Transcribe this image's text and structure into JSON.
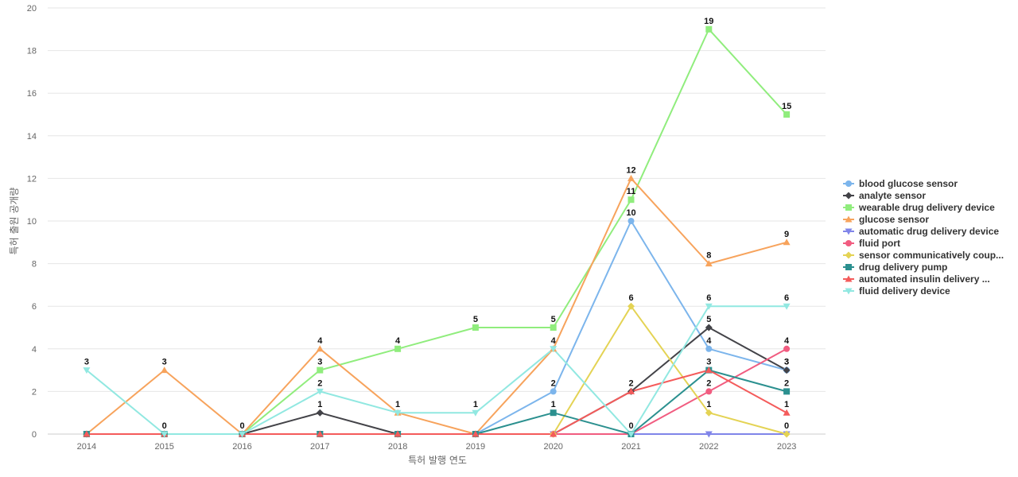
{
  "chart_data": {
    "type": "line",
    "title": "",
    "xlabel": "특허 발행 연도",
    "ylabel": "특허 출원 공개량",
    "ylim": [
      0,
      20
    ],
    "ystep": 2,
    "grid": true,
    "legend": "right",
    "categories": [
      "2014",
      "2015",
      "2016",
      "2017",
      "2018",
      "2019",
      "2020",
      "2021",
      "2022",
      "2023"
    ],
    "series": [
      {
        "name": "blood glucose sensor",
        "color": "#7cb5ec",
        "marker": "circle",
        "values": [
          0,
          0,
          0,
          0,
          0,
          0,
          2,
          10,
          4,
          3
        ]
      },
      {
        "name": "analyte sensor",
        "color": "#434348",
        "marker": "diamond",
        "values": [
          0,
          0,
          0,
          1,
          0,
          0,
          0,
          2,
          5,
          3
        ]
      },
      {
        "name": "wearable drug delivery device",
        "color": "#90ed7d",
        "marker": "square",
        "values": [
          0,
          0,
          0,
          3,
          4,
          5,
          5,
          11,
          19,
          15
        ]
      },
      {
        "name": "glucose sensor",
        "color": "#f7a35c",
        "marker": "triangle",
        "values": [
          0,
          3,
          0,
          4,
          1,
          0,
          4,
          12,
          8,
          9
        ]
      },
      {
        "name": "automatic drug delivery device",
        "color": "#8085e9",
        "marker": "triangle-down",
        "values": [
          0,
          0,
          0,
          0,
          0,
          0,
          0,
          0,
          0,
          0
        ]
      },
      {
        "name": "fluid port",
        "color": "#f15c80",
        "marker": "circle",
        "values": [
          0,
          0,
          0,
          0,
          0,
          0,
          0,
          0,
          2,
          4
        ]
      },
      {
        "name": "sensor communicatively coup...",
        "color": "#e4d354",
        "marker": "diamond",
        "values": [
          0,
          0,
          0,
          0,
          0,
          0,
          0,
          6,
          1,
          0
        ]
      },
      {
        "name": "drug delivery pump",
        "color": "#2b908f",
        "marker": "square",
        "values": [
          0,
          0,
          0,
          0,
          0,
          0,
          1,
          0,
          3,
          2
        ]
      },
      {
        "name": "automated insulin delivery ...",
        "color": "#f45b5b",
        "marker": "triangle",
        "values": [
          0,
          0,
          0,
          0,
          0,
          0,
          0,
          2,
          3,
          1
        ]
      },
      {
        "name": "fluid delivery device",
        "color": "#91e8e1",
        "marker": "triangle-down",
        "values": [
          3,
          0,
          0,
          2,
          1,
          1,
          4,
          0,
          6,
          6
        ]
      }
    ],
    "labeled_series": {
      "blood glucose sensor": [
        6,
        7,
        8,
        9
      ],
      "analyte sensor": [
        3,
        8,
        9
      ],
      "wearable drug delivery device": [
        3,
        4,
        5,
        6,
        7,
        8,
        9
      ],
      "glucose sensor": [
        1,
        3,
        7,
        8,
        9
      ],
      "fluid port": [
        8,
        9
      ],
      "sensor communicatively coup...": [
        7,
        8,
        9
      ],
      "drug delivery pump": [
        6,
        9
      ],
      "automated insulin delivery ...": [
        7,
        8,
        9
      ],
      "fluid delivery device": [
        0,
        1,
        2,
        3,
        4,
        5,
        6,
        7,
        8,
        9
      ]
    }
  }
}
